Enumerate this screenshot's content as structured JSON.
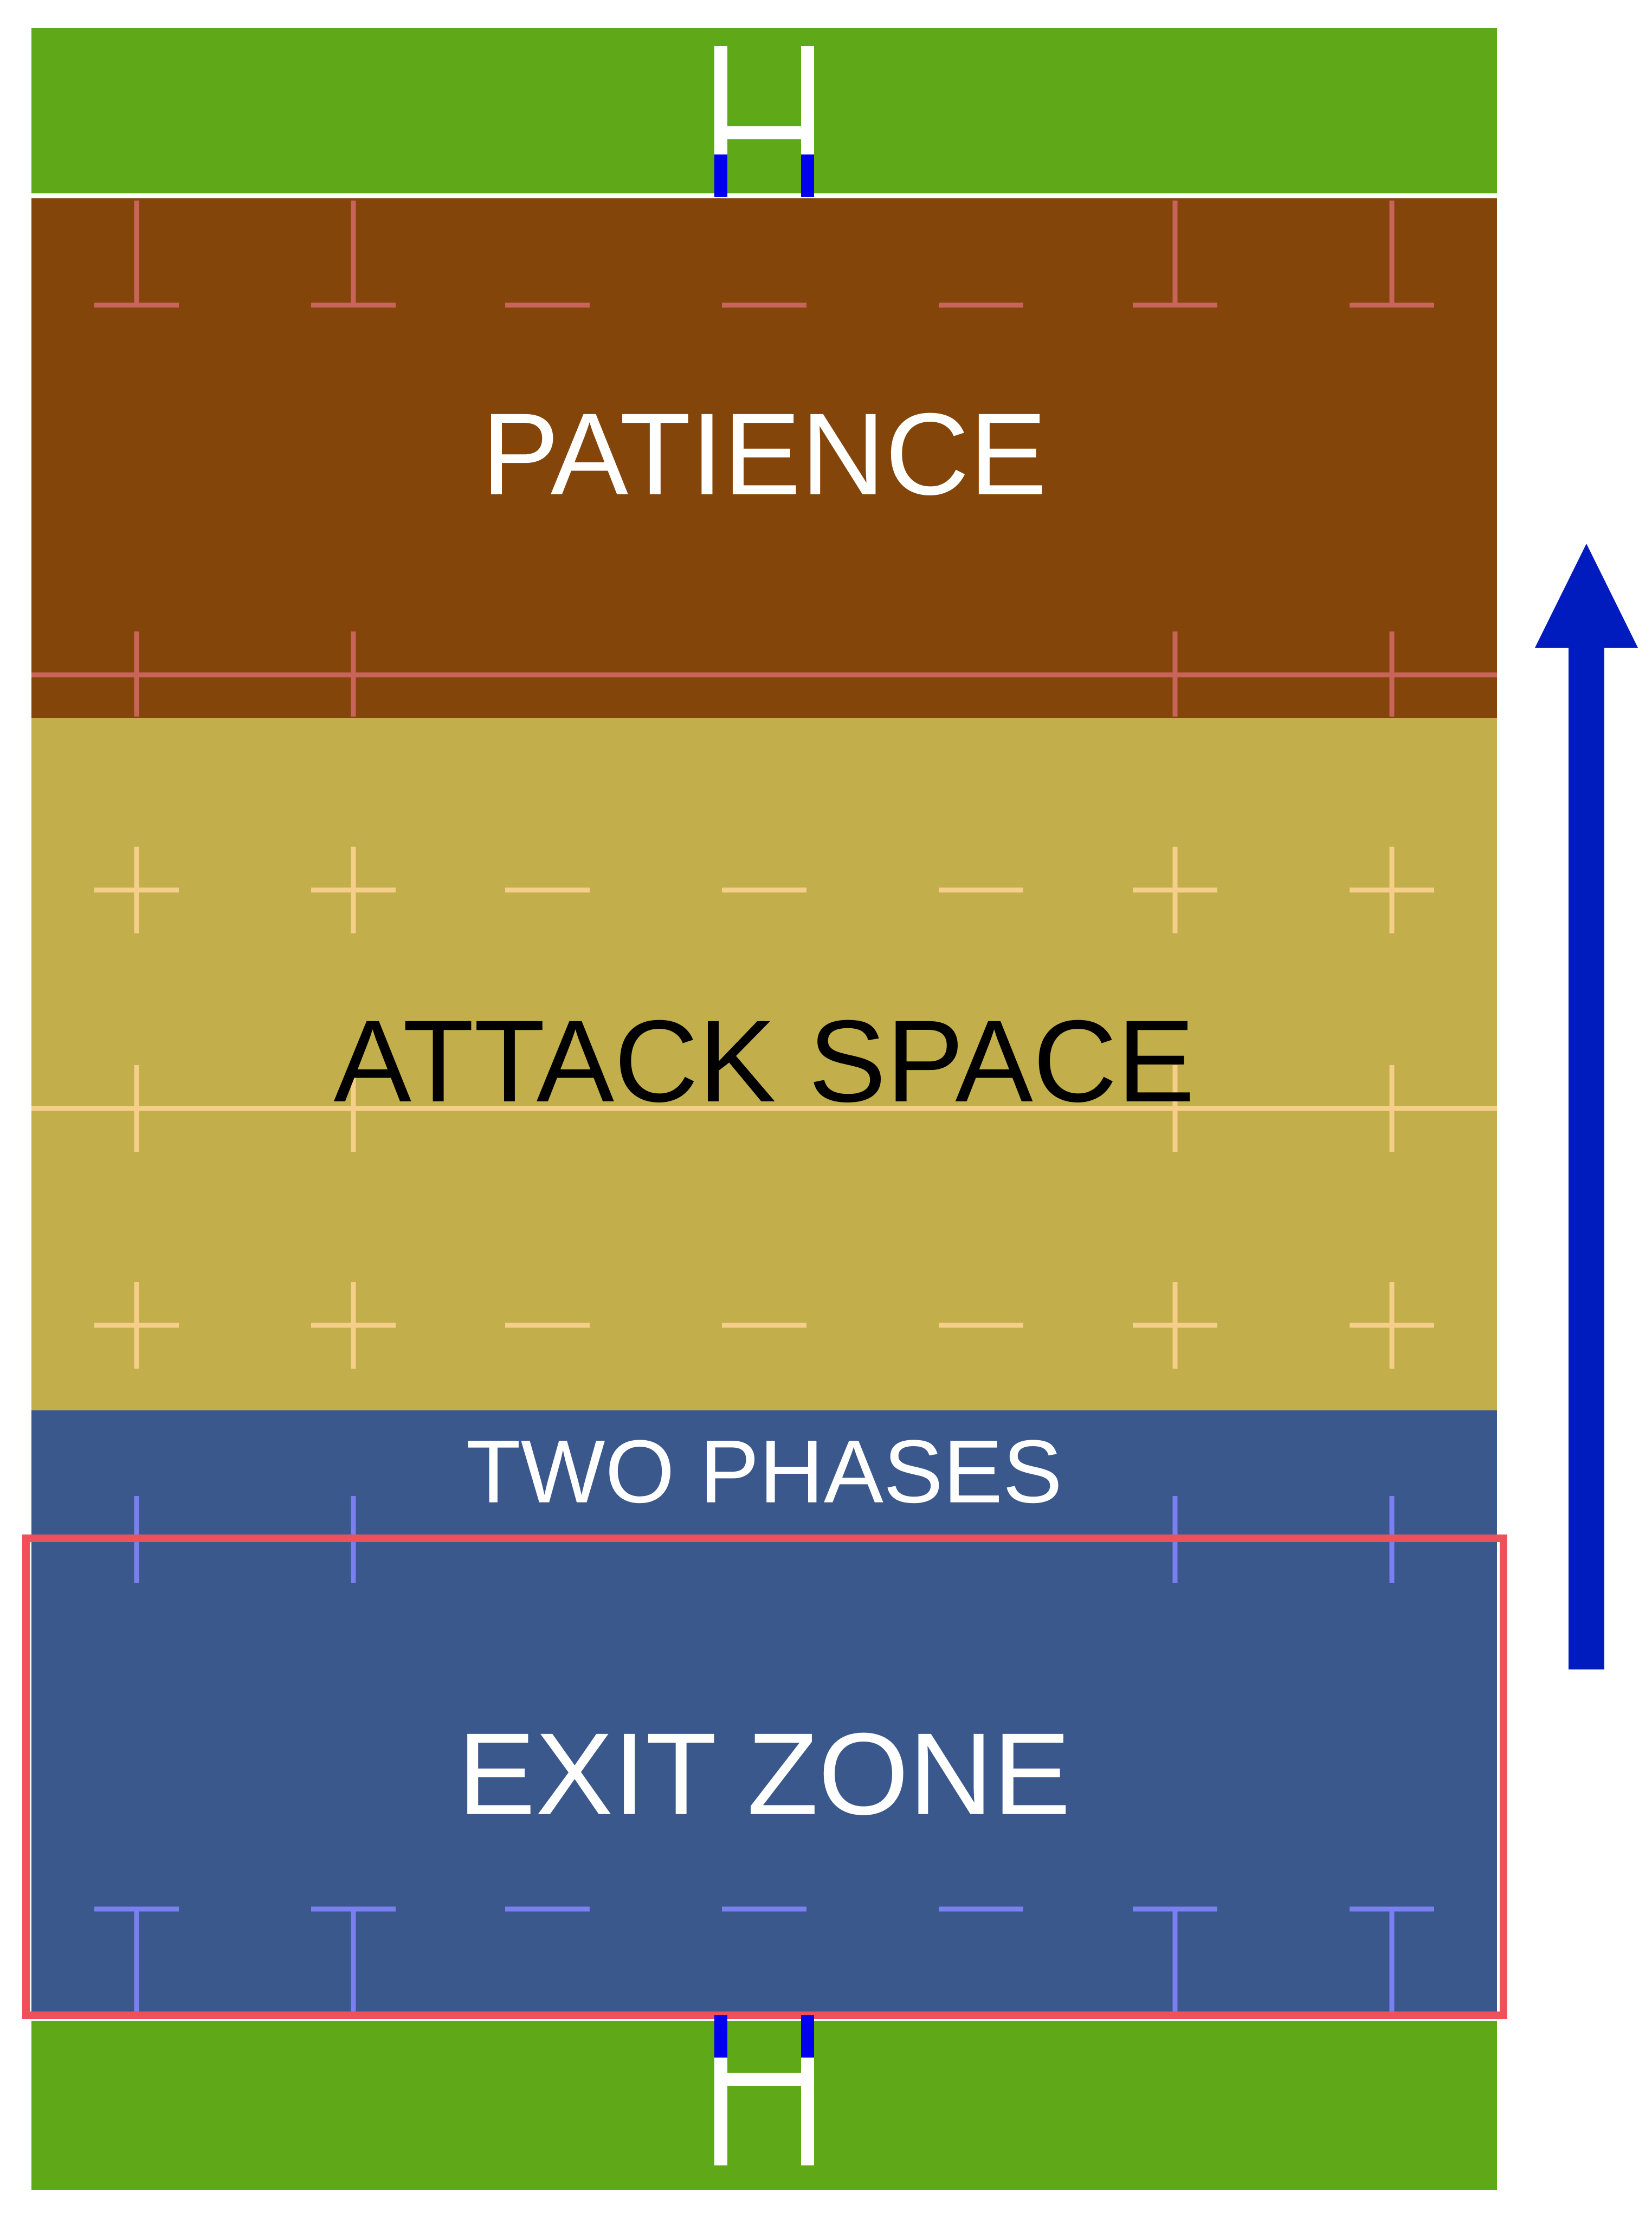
{
  "zones": {
    "patience": {
      "label": "PATIENCE",
      "fill": "#84450A",
      "text_color": "#FFFFFF",
      "line_color": "#C8645A"
    },
    "attack": {
      "label": "ATTACK SPACE",
      "fill": "#C2AE4A",
      "text_color": "#000000",
      "line_color": "#F5CF8A"
    },
    "two_phases": {
      "label": "TWO PHASES",
      "fill": "#3A588C",
      "text_color": "#FFFFFF",
      "line_color": "#7B7FF0"
    },
    "exit": {
      "label": "EXIT ZONE",
      "fill": "#3A588C",
      "text_color": "#FFFFFF",
      "line_color": "#7B7FF0"
    }
  },
  "in_goal_color": "#5FA818",
  "posts_color": "#FFFFFF",
  "post_pad_color": "#0000EE",
  "exit_zone_highlight_color": "#F0505A",
  "direction_arrow": {
    "direction": "up",
    "color": "#001BBE"
  }
}
